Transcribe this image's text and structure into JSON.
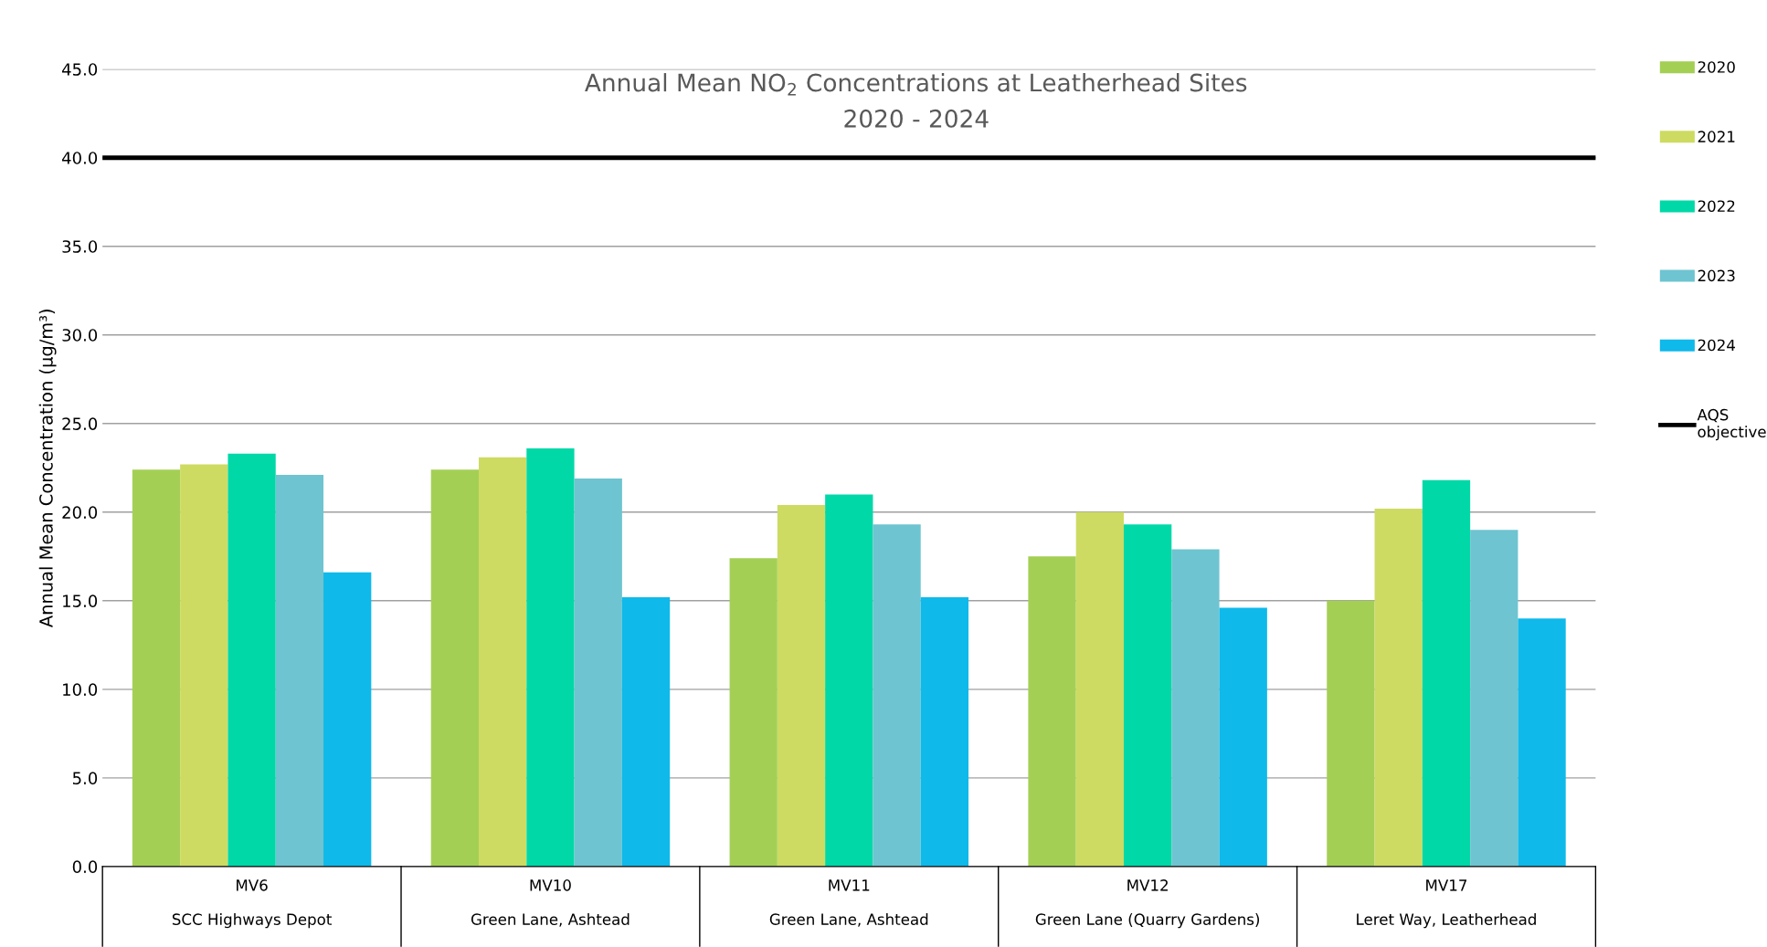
{
  "chart_data": {
    "type": "bar",
    "title": "Annual Mean NO$_{2}$ Concentrations at Leatherhead Sites",
    "subtitle": "2020 - 2024",
    "ylabel": "Annual Mean Concentration (µg/m³)",
    "categories": [
      "MV6\n\nSCC Highways Depot",
      "MV10\n\nGreen Lane, Ashtead",
      "MV11\n\nGreen Lane, Ashtead",
      "MV12\n\nGreen Lane (Quarry Gardens)",
      "MV17\n\nLeret Way, Leatherhead"
    ],
    "series": [
      {
        "name": "2020",
        "color": "#a4cf55",
        "values": [
          22.4,
          22.4,
          17.4,
          17.5,
          15.0
        ]
      },
      {
        "name": "2021",
        "color": "#cddb62",
        "values": [
          22.7,
          23.1,
          20.4,
          20.0,
          20.2
        ]
      },
      {
        "name": "2022",
        "color": "#00d8a8",
        "values": [
          23.3,
          23.6,
          21.0,
          19.3,
          21.8
        ]
      },
      {
        "name": "2023",
        "color": "#6ec4d0",
        "values": [
          22.1,
          21.9,
          19.3,
          17.9,
          19.0
        ]
      },
      {
        "name": "2024",
        "color": "#0fb9ea",
        "values": [
          16.6,
          15.2,
          15.2,
          14.6,
          14.0
        ]
      }
    ],
    "ylim": [
      0,
      45
    ],
    "yticks": [
      {
        "value": 0,
        "label": "0.0"
      },
      {
        "value": 5,
        "label": "5.0"
      },
      {
        "value": 10,
        "label": "10.0"
      },
      {
        "value": 15,
        "label": "15.0"
      },
      {
        "value": 20,
        "label": "20.0"
      },
      {
        "value": 25,
        "label": "25.0"
      },
      {
        "value": 30,
        "label": "30.0"
      },
      {
        "value": 35,
        "label": "35.0"
      },
      {
        "value": 40,
        "label": "40.0"
      },
      {
        "value": 45,
        "label": "45.0"
      }
    ],
    "ref_lines": [
      {
        "axis": "y",
        "value": 40,
        "label": "AQS\nobjective",
        "color": "#000000",
        "line_style": "solid"
      }
    ],
    "grid": "y",
    "legend": "right"
  }
}
